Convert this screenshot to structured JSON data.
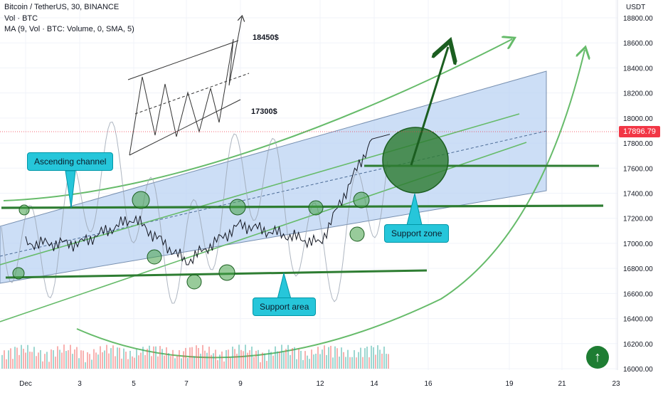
{
  "header": {
    "symbol_line": "Bitcoin / TetherUS, 30, BINANCE",
    "vol_line": "Vol · BTC",
    "ma_line": "MA (9, Vol · BTC: Volume, 0, SMA, 5)"
  },
  "currency": "USDT",
  "last_price_label": "17896.79",
  "annotations": {
    "ascending_channel": "Ascending channel",
    "support_zone": "Support zone",
    "support_area": "Support area",
    "target_high": "18450$",
    "target_low": "17300$"
  },
  "colors": {
    "channel_fill": "#bbd4f4",
    "green_line": "#2e7d32",
    "light_green": "#66bb6a",
    "callout": "#26c6da",
    "price_tag": "#f23645"
  },
  "chart_data": {
    "type": "line",
    "title": "Bitcoin / TetherUS, 30, BINANCE",
    "xlabel": "",
    "ylabel": "",
    "ylim": [
      16000,
      18800
    ],
    "x_ticks": [
      "Dec",
      "3",
      "5",
      "7",
      "9",
      "12",
      "14",
      "16",
      "19",
      "21",
      "23"
    ],
    "y_ticks": [
      "16000.00",
      "16200.00",
      "16400.00",
      "16600.00",
      "16800.00",
      "17000.00",
      "17200.00",
      "17400.00",
      "17600.00",
      "17800.00",
      "18000.00",
      "18200.00",
      "18400.00",
      "18600.00",
      "18800.00"
    ],
    "series": [
      {
        "x": [
          "Dec",
          "3",
          "5",
          "7",
          "9",
          "12",
          "14"
        ],
        "values": [
          17000,
          17000,
          17200,
          16850,
          17150,
          17000,
          17870
        ]
      }
    ],
    "horizontal_levels": [
      17300,
      16800,
      17650
    ],
    "last_price": 17896.79,
    "grid": true
  },
  "icons": {
    "scroll_button": "arrow-up-icon"
  }
}
